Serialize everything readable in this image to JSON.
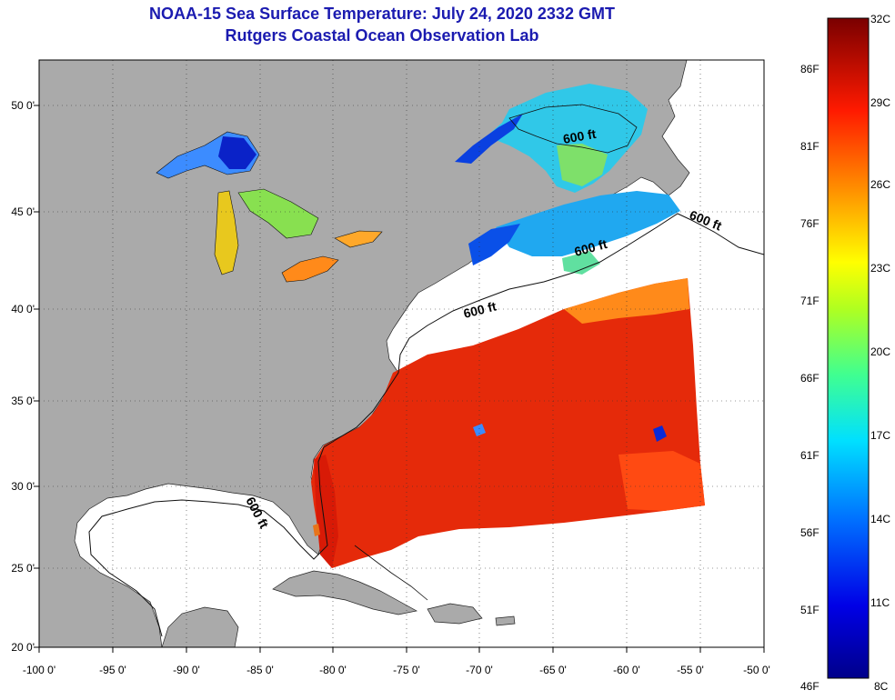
{
  "header": {
    "title": "NOAA-15 Sea Surface Temperature:  July 24, 2020 2332 GMT",
    "subtitle": "Rutgers Coastal Ocean Observation Lab"
  },
  "axes": {
    "lon_ticks": [
      "-100 0'",
      "-95 0'",
      "-90 0'",
      "-85 0'",
      "-80 0'",
      "-75 0'",
      "-70 0'",
      "-65 0'",
      "-60 0'",
      "-55 0'",
      "-50 0'"
    ],
    "lat_ticks": [
      "50 0'",
      "45 0'",
      "40 0'",
      "35 0'",
      "30 0'",
      "25 0'",
      "20 0'"
    ]
  },
  "contour_labels": [
    "600 ft",
    "600 ft",
    "600 ft",
    "600 ft",
    "600 ft"
  ],
  "colorbar": {
    "fahrenheit": [
      "86F",
      "81F",
      "76F",
      "71F",
      "66F",
      "61F",
      "56F",
      "51F",
      "46F"
    ],
    "celsius": [
      "32C",
      "29C",
      "26C",
      "23C",
      "20C",
      "17C",
      "14C",
      "11C",
      "8C"
    ]
  },
  "colors": {
    "land": "#aaaaaa",
    "no_data": "#ffffff",
    "title": "#1b1bb0",
    "warm": "#e82a0a",
    "hot": "#7a0000",
    "cold": "#00008a"
  }
}
